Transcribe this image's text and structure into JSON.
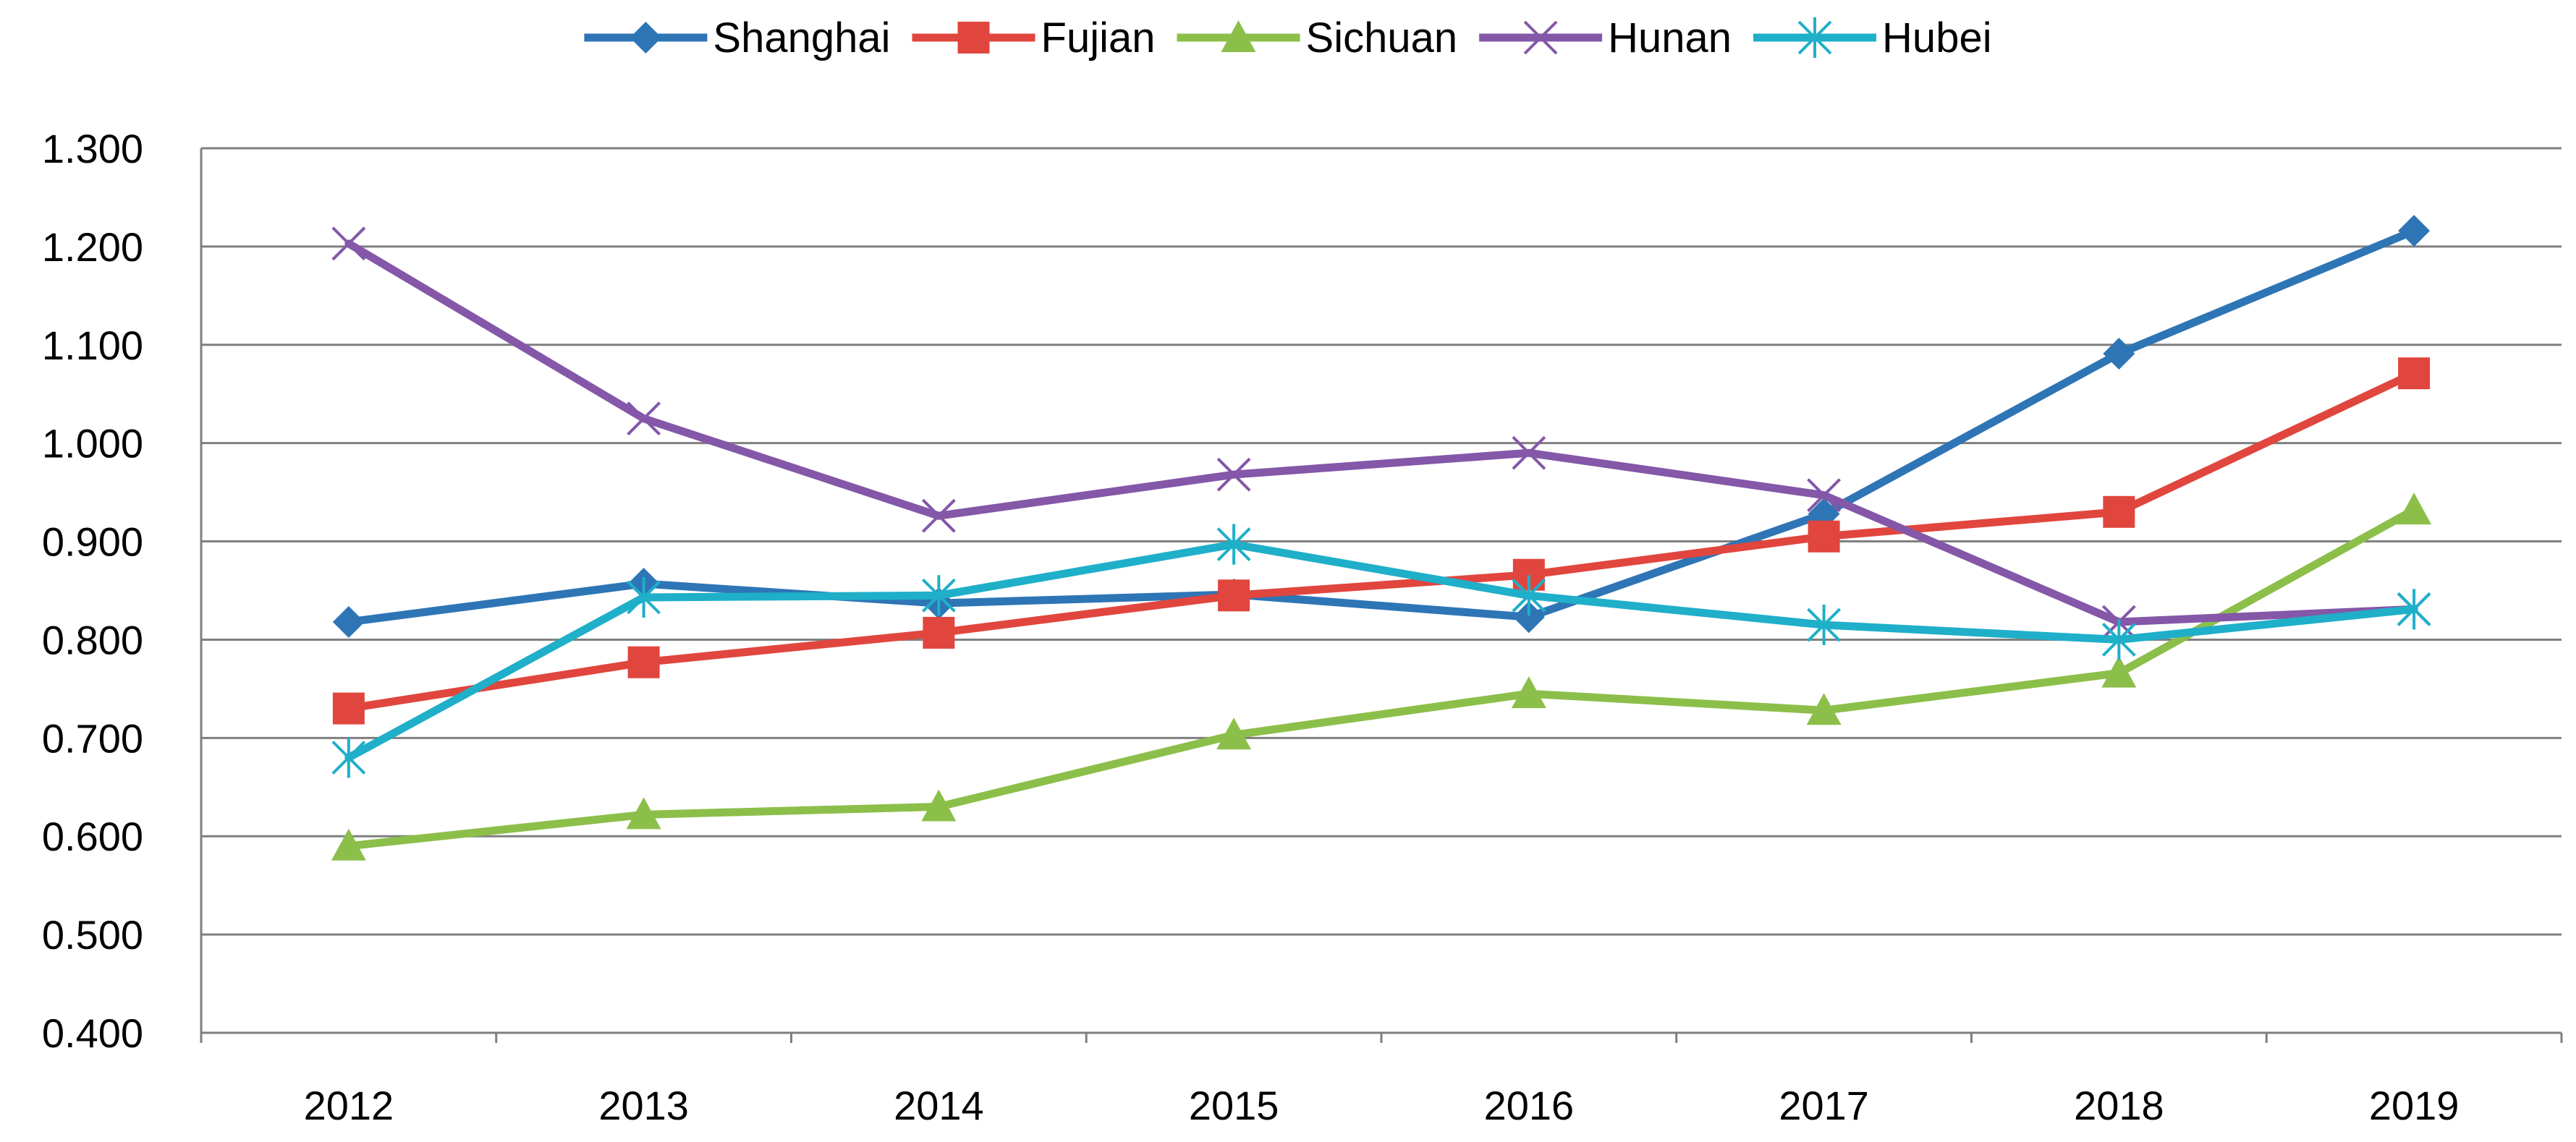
{
  "chart_data": {
    "type": "line",
    "title": "",
    "xlabel": "",
    "ylabel": "",
    "categories": [
      "2012",
      "2013",
      "2014",
      "2015",
      "2016",
      "2017",
      "2018",
      "2019"
    ],
    "ylim": [
      0.4,
      1.3
    ],
    "yticks": [
      "0.400",
      "0.500",
      "0.600",
      "0.700",
      "0.800",
      "0.900",
      "1.000",
      "1.100",
      "1.200",
      "1.300"
    ],
    "grid": "horizontal",
    "legend_position": "top",
    "series": [
      {
        "name": "Shanghai",
        "color": "#2E75B6",
        "marker": "diamond",
        "values": [
          0.818,
          0.857,
          0.837,
          0.846,
          0.823,
          0.928,
          1.091,
          1.216
        ]
      },
      {
        "name": "Fujian",
        "color": "#E0463E",
        "marker": "square",
        "values": [
          0.73,
          0.777,
          0.807,
          0.845,
          0.866,
          0.905,
          0.93,
          1.071
        ]
      },
      {
        "name": "Sichuan",
        "color": "#8CBF4A",
        "marker": "triangle",
        "values": [
          0.59,
          0.622,
          0.63,
          0.703,
          0.745,
          0.728,
          0.766,
          0.932
        ]
      },
      {
        "name": "Hunan",
        "color": "#8457A8",
        "marker": "x",
        "values": [
          1.203,
          1.025,
          0.926,
          0.968,
          0.99,
          0.947,
          0.818,
          0.831
        ]
      },
      {
        "name": "Hubei",
        "color": "#1FAFC9",
        "marker": "asterisk",
        "values": [
          0.68,
          0.843,
          0.845,
          0.897,
          0.845,
          0.815,
          0.8,
          0.831
        ]
      }
    ]
  }
}
